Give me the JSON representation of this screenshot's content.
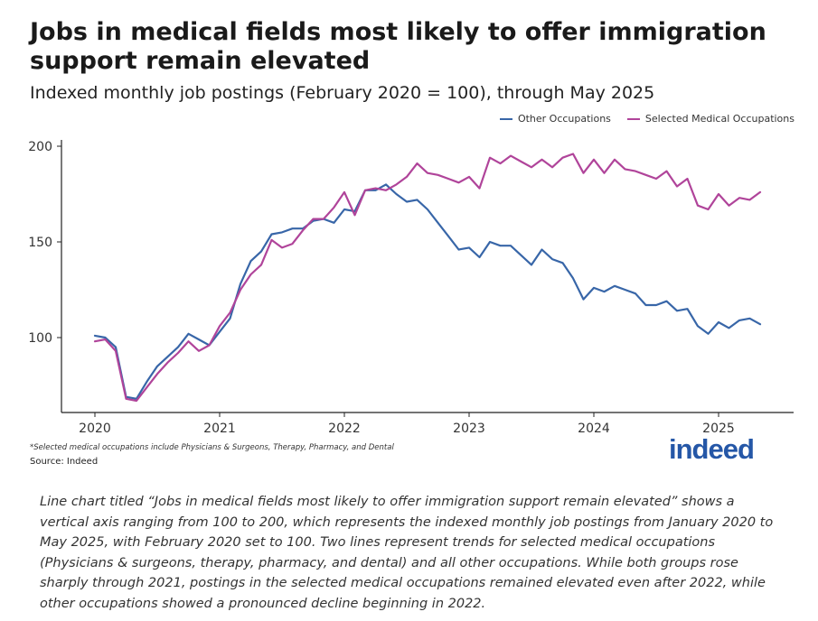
{
  "title": "Jobs in medical fields most likely to offer immigration support remain elevated",
  "subtitle": "Indexed monthly job postings (February 2020 = 100), through May 2025",
  "footnote": "*Selected medical occupations include Physicians & Surgeons, Therapy, Pharmacy, and Dental",
  "source": "Source: Indeed",
  "logo": "indeed",
  "description": "Line chart titled “Jobs in medical fields most likely to offer immigration support remain elevated” shows a vertical axis ranging from 100 to 200, which represents the indexed monthly job postings from January 2020 to May 2025, with February 2020 set to 100. Two lines represent trends for selected medical occupations (Physicians & surgeons, therapy, pharmacy, and dental) and all other occupations. While both groups rose sharply through 2021, postings in the selected medical occupations remained elevated even after 2022, while other occupations showed a pronounced decline beginning in 2022.",
  "colors": {
    "other": "#3866a8",
    "medical": "#b0449a",
    "axis": "#222222",
    "text": "#333333"
  },
  "chart_data": {
    "type": "line",
    "start": "2020-01",
    "x_ticks": [
      "2020",
      "2021",
      "2022",
      "2023",
      "2024",
      "2025"
    ],
    "y_ticks": [
      100,
      150,
      200
    ],
    "ylim": [
      60,
      205
    ],
    "legend_position": "top-right",
    "grid": false,
    "series": [
      {
        "name": "Other Occupations",
        "color_key": "other",
        "values": [
          101,
          100,
          95,
          69,
          68,
          77,
          85,
          90,
          95,
          102,
          99,
          96,
          103,
          110,
          128,
          140,
          145,
          154,
          155,
          157,
          157,
          161,
          162,
          160,
          167,
          166,
          177,
          177,
          180,
          175,
          171,
          172,
          167,
          160,
          153,
          146,
          147,
          142,
          150,
          148,
          148,
          143,
          138,
          146,
          141,
          139,
          131,
          120,
          126,
          124,
          127,
          125,
          123,
          117,
          117,
          119,
          114,
          115,
          106,
          102,
          108,
          105,
          109,
          110,
          107
        ]
      },
      {
        "name": "Selected Medical Occupations",
        "color_key": "medical",
        "values": [
          98,
          99,
          93,
          68,
          67,
          74,
          81,
          87,
          92,
          98,
          93,
          96,
          106,
          113,
          125,
          133,
          138,
          151,
          147,
          149,
          156,
          162,
          162,
          168,
          176,
          164,
          177,
          178,
          177,
          180,
          184,
          191,
          186,
          185,
          183,
          181,
          184,
          178,
          194,
          191,
          195,
          192,
          189,
          193,
          189,
          194,
          196,
          186,
          193,
          186,
          193,
          188,
          187,
          185,
          183,
          187,
          179,
          183,
          169,
          167,
          175,
          169,
          173,
          172,
          176
        ]
      }
    ]
  }
}
